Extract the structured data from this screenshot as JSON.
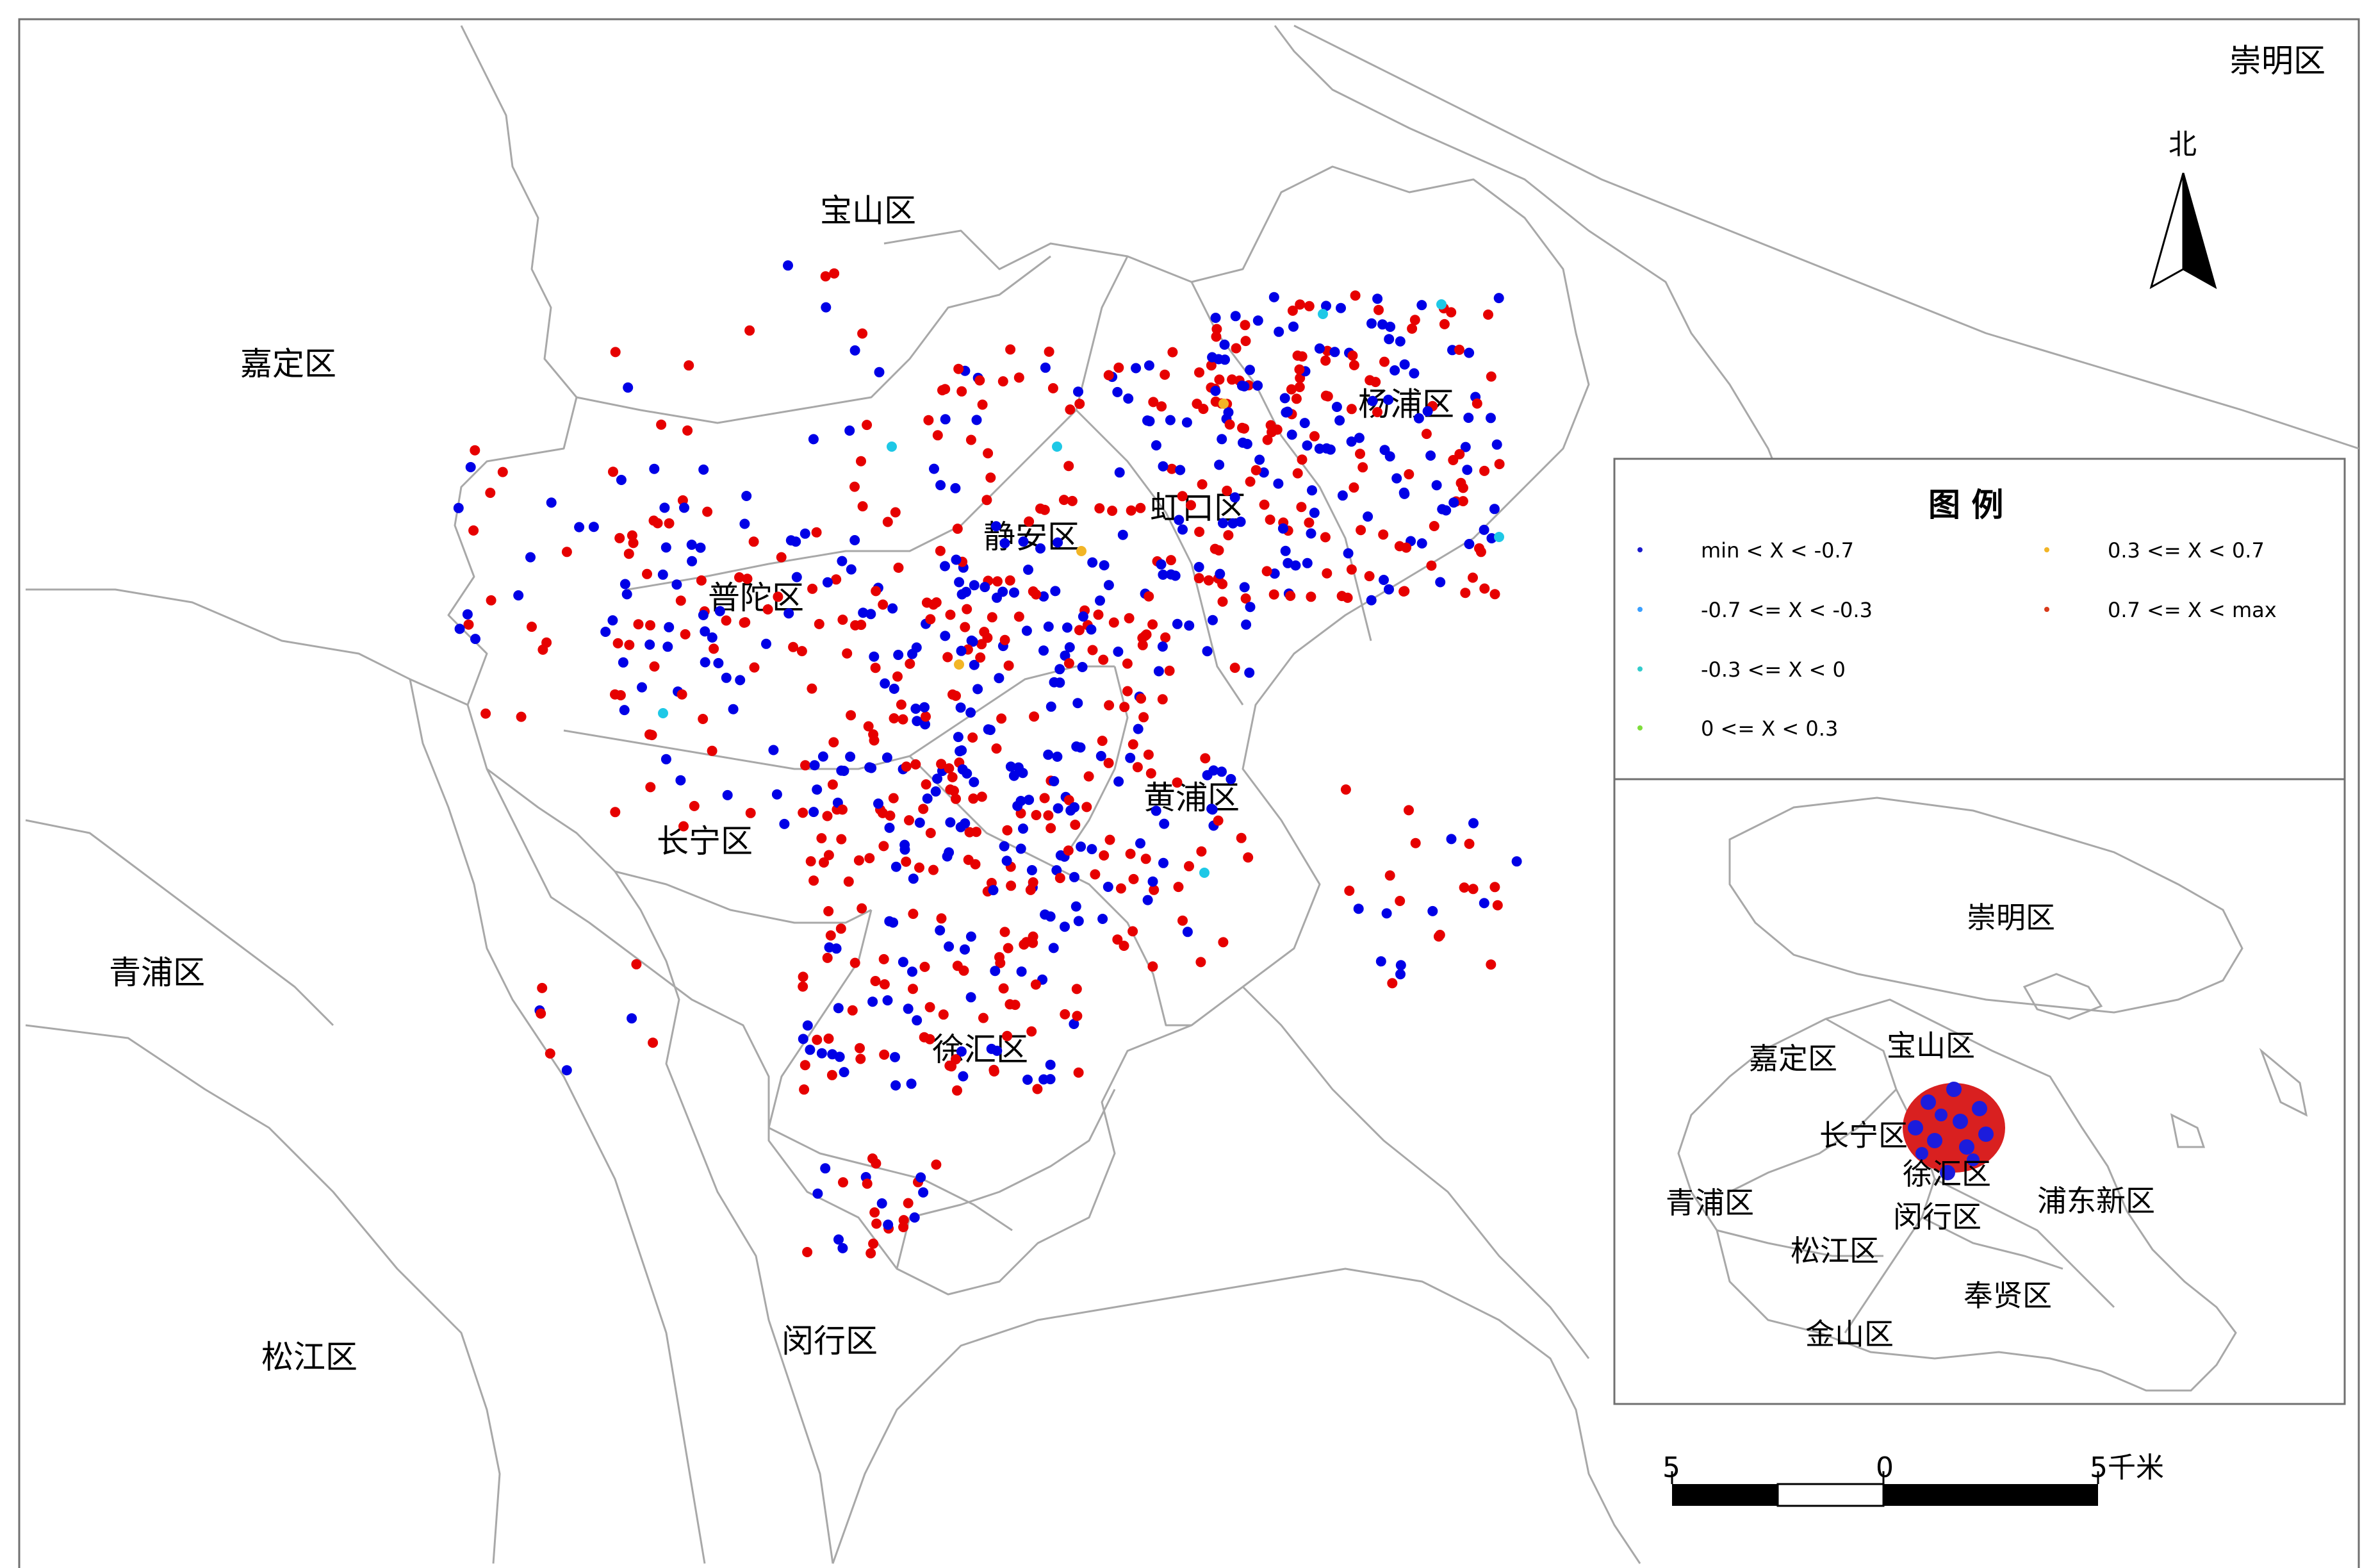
{
  "main_map": {
    "district_labels": [
      {
        "id": "chongming",
        "text": "崇明区"
      },
      {
        "id": "baoshan",
        "text": "宝山区"
      },
      {
        "id": "jiading",
        "text": "嘉定区"
      },
      {
        "id": "yangpu",
        "text": "杨浦区"
      },
      {
        "id": "hongkou",
        "text": "虹口区"
      },
      {
        "id": "jingan",
        "text": "静安区"
      },
      {
        "id": "putuo",
        "text": "普陀区"
      },
      {
        "id": "huangpu",
        "text": "黄浦区"
      },
      {
        "id": "changning",
        "text": "长宁区"
      },
      {
        "id": "qingpu",
        "text": "青浦区"
      },
      {
        "id": "xuhui",
        "text": "徐汇区"
      },
      {
        "id": "songjiang",
        "text": "松江区"
      },
      {
        "id": "minhang",
        "text": "闵行区"
      }
    ]
  },
  "north_arrow": {
    "label": "北"
  },
  "legend": {
    "title": "图  例",
    "classes": [
      {
        "label": "min < X < -0.7",
        "color": "#1a1acc"
      },
      {
        "label": "-0.7 <= X < -0.3",
        "color": "#3ba0ff"
      },
      {
        "label": "-0.3 <= X < 0",
        "color": "#33cccc"
      },
      {
        "label": "0 <= X < 0.3",
        "color": "#7fdd3c"
      },
      {
        "label": "0.3 <= X < 0.7",
        "color": "#f2b526"
      },
      {
        "label": "0.7 <= X < max",
        "color": "#d93a1a"
      }
    ]
  },
  "inset_map": {
    "district_labels": [
      {
        "id": "chongming",
        "text": "崇明区"
      },
      {
        "id": "jiading",
        "text": "嘉定区"
      },
      {
        "id": "baoshan",
        "text": "宝山区"
      },
      {
        "id": "changning",
        "text": "长宁区"
      },
      {
        "id": "qingpu",
        "text": "青浦区"
      },
      {
        "id": "xuhui",
        "text": "徐汇区"
      },
      {
        "id": "minhang",
        "text": "闵行区"
      },
      {
        "id": "pudong",
        "text": "浦东新区"
      },
      {
        "id": "songjiang",
        "text": "松江区"
      },
      {
        "id": "fengxian",
        "text": "奉贤区"
      },
      {
        "id": "jinshan",
        "text": "金山区"
      }
    ]
  },
  "scale_bar": {
    "left_label": "5",
    "mid_label": "0",
    "right_label": "5千米"
  },
  "colors": {
    "point_red": "#e60000",
    "point_blue": "#0000e6",
    "point_cyan": "#1ec8e6",
    "point_orange": "#f2b526",
    "boundary": "#a8a8a8"
  }
}
